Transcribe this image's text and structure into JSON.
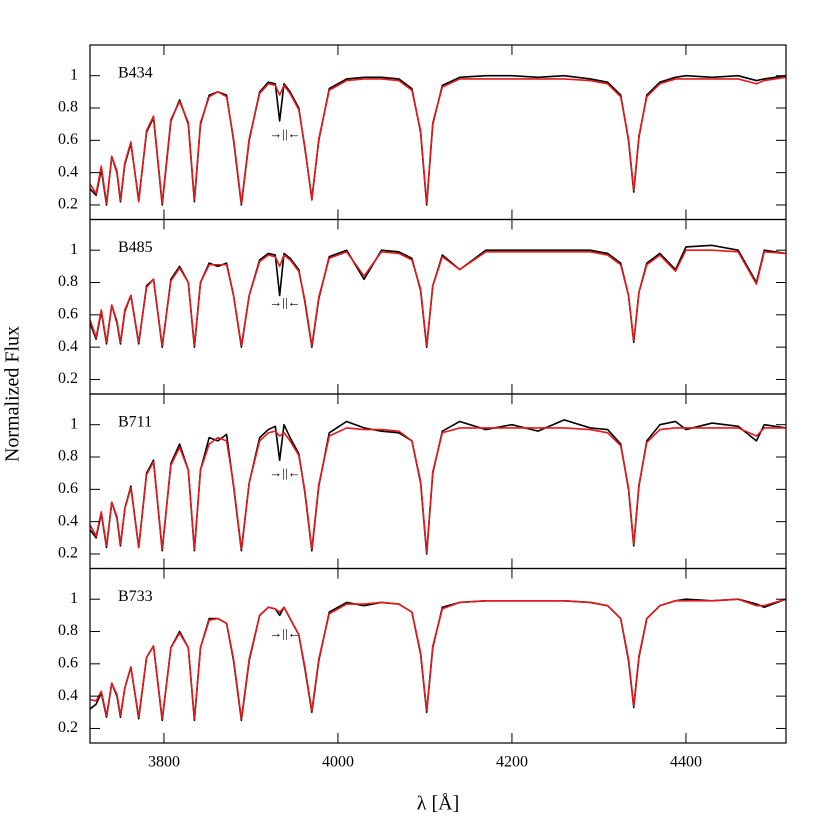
{
  "chart_data": [
    {
      "type": "line",
      "title": "B434",
      "annotation": "→||←",
      "ylabel": "Normalized Flux",
      "xlim": [
        3715,
        4515
      ],
      "xticks": [
        3800,
        4000,
        4200,
        4400
      ],
      "ylim": [
        0.11,
        1.19
      ],
      "yticks": [
        0.2,
        0.4,
        0.6,
        0.8,
        1
      ],
      "x": [
        3715,
        3722,
        3728,
        3734,
        3740,
        3746,
        3750,
        3755,
        3762,
        3771,
        3780,
        3788,
        3798,
        3808,
        3818,
        3828,
        3835,
        3842,
        3852,
        3862,
        3872,
        3880,
        3889,
        3898,
        3910,
        3920,
        3928,
        3933,
        3938,
        3945,
        3955,
        3962,
        3970,
        3978,
        3990,
        4010,
        4030,
        4050,
        4070,
        4085,
        4095,
        4102,
        4109,
        4120,
        4140,
        4170,
        4200,
        4230,
        4260,
        4290,
        4310,
        4325,
        4334,
        4340,
        4346,
        4355,
        4370,
        4388,
        4400,
        4430,
        4460,
        4481,
        4490,
        4515
      ],
      "series": [
        {
          "color": "#000000",
          "values": [
            0.3,
            0.26,
            0.42,
            0.2,
            0.5,
            0.4,
            0.22,
            0.45,
            0.58,
            0.23,
            0.65,
            0.74,
            0.2,
            0.72,
            0.85,
            0.7,
            0.22,
            0.7,
            0.88,
            0.9,
            0.88,
            0.6,
            0.2,
            0.6,
            0.9,
            0.96,
            0.95,
            0.72,
            0.95,
            0.9,
            0.8,
            0.55,
            0.24,
            0.6,
            0.92,
            0.98,
            0.99,
            0.99,
            0.98,
            0.92,
            0.65,
            0.2,
            0.7,
            0.94,
            0.99,
            1.0,
            1.0,
            0.99,
            1.0,
            0.98,
            0.96,
            0.88,
            0.6,
            0.28,
            0.62,
            0.88,
            0.96,
            0.99,
            1.0,
            0.99,
            1.0,
            0.97,
            0.98,
            1.0
          ]
        },
        {
          "color": "#e31a1c",
          "values": [
            0.33,
            0.27,
            0.44,
            0.21,
            0.5,
            0.41,
            0.23,
            0.46,
            0.59,
            0.22,
            0.66,
            0.75,
            0.21,
            0.73,
            0.84,
            0.71,
            0.23,
            0.71,
            0.87,
            0.9,
            0.87,
            0.61,
            0.21,
            0.61,
            0.89,
            0.95,
            0.94,
            0.88,
            0.94,
            0.89,
            0.79,
            0.56,
            0.23,
            0.61,
            0.91,
            0.97,
            0.98,
            0.98,
            0.97,
            0.91,
            0.66,
            0.21,
            0.71,
            0.93,
            0.98,
            0.98,
            0.98,
            0.98,
            0.98,
            0.97,
            0.95,
            0.87,
            0.61,
            0.29,
            0.63,
            0.87,
            0.95,
            0.98,
            0.98,
            0.98,
            0.98,
            0.95,
            0.97,
            0.99
          ]
        }
      ]
    },
    {
      "type": "line",
      "title": "B485",
      "annotation": "→||←",
      "xlim": [
        3715,
        4515
      ],
      "xticks": [
        3800,
        4000,
        4200,
        4400
      ],
      "ylim": [
        0.11,
        1.19
      ],
      "yticks": [
        0.2,
        0.4,
        0.6,
        0.8,
        1
      ],
      "x": [
        3715,
        3722,
        3728,
        3734,
        3740,
        3746,
        3750,
        3755,
        3762,
        3771,
        3780,
        3788,
        3798,
        3808,
        3818,
        3828,
        3835,
        3842,
        3852,
        3862,
        3872,
        3880,
        3889,
        3898,
        3910,
        3920,
        3928,
        3933,
        3938,
        3945,
        3955,
        3962,
        3970,
        3978,
        3990,
        4010,
        4030,
        4050,
        4070,
        4085,
        4095,
        4102,
        4109,
        4120,
        4140,
        4170,
        4200,
        4230,
        4260,
        4290,
        4310,
        4325,
        4334,
        4340,
        4346,
        4355,
        4370,
        4388,
        4400,
        4430,
        4460,
        4481,
        4490,
        4515
      ],
      "series": [
        {
          "color": "#000000",
          "values": [
            0.55,
            0.45,
            0.62,
            0.42,
            0.66,
            0.55,
            0.42,
            0.62,
            0.72,
            0.42,
            0.78,
            0.82,
            0.4,
            0.82,
            0.9,
            0.8,
            0.4,
            0.8,
            0.92,
            0.9,
            0.92,
            0.72,
            0.4,
            0.72,
            0.94,
            0.98,
            0.97,
            0.72,
            0.98,
            0.95,
            0.88,
            0.68,
            0.4,
            0.7,
            0.96,
            1.0,
            0.82,
            1.0,
            0.99,
            0.95,
            0.75,
            0.4,
            0.78,
            0.97,
            0.88,
            1.0,
            1.0,
            1.0,
            1.0,
            1.0,
            0.98,
            0.92,
            0.72,
            0.43,
            0.74,
            0.92,
            0.98,
            0.88,
            1.02,
            1.03,
            1.0,
            0.8,
            1.0,
            0.98
          ]
        },
        {
          "color": "#e31a1c",
          "values": [
            0.57,
            0.46,
            0.63,
            0.43,
            0.66,
            0.56,
            0.43,
            0.63,
            0.72,
            0.43,
            0.77,
            0.82,
            0.41,
            0.81,
            0.89,
            0.8,
            0.41,
            0.8,
            0.91,
            0.91,
            0.91,
            0.72,
            0.41,
            0.72,
            0.93,
            0.97,
            0.96,
            0.9,
            0.97,
            0.94,
            0.87,
            0.69,
            0.41,
            0.71,
            0.95,
            0.99,
            0.84,
            0.99,
            0.98,
            0.94,
            0.76,
            0.41,
            0.78,
            0.96,
            0.88,
            0.99,
            0.99,
            0.99,
            0.99,
            0.99,
            0.97,
            0.91,
            0.72,
            0.44,
            0.74,
            0.91,
            0.97,
            0.87,
            1.0,
            1.0,
            0.99,
            0.79,
            0.99,
            0.98
          ]
        }
      ]
    },
    {
      "type": "line",
      "title": "B711",
      "annotation": "→||←",
      "xlim": [
        3715,
        4515
      ],
      "xticks": [
        3800,
        4000,
        4200,
        4400
      ],
      "ylim": [
        0.11,
        1.19
      ],
      "yticks": [
        0.2,
        0.4,
        0.6,
        0.8,
        1
      ],
      "x": [
        3715,
        3722,
        3728,
        3734,
        3740,
        3746,
        3750,
        3755,
        3762,
        3771,
        3780,
        3788,
        3798,
        3808,
        3818,
        3828,
        3835,
        3842,
        3852,
        3862,
        3872,
        3880,
        3889,
        3898,
        3910,
        3920,
        3928,
        3933,
        3938,
        3945,
        3955,
        3962,
        3970,
        3978,
        3990,
        4010,
        4030,
        4050,
        4070,
        4085,
        4095,
        4102,
        4109,
        4120,
        4140,
        4170,
        4200,
        4230,
        4260,
        4290,
        4310,
        4325,
        4334,
        4340,
        4346,
        4355,
        4370,
        4388,
        4400,
        4430,
        4460,
        4481,
        4490,
        4515
      ],
      "series": [
        {
          "color": "#000000",
          "values": [
            0.35,
            0.3,
            0.45,
            0.24,
            0.52,
            0.42,
            0.25,
            0.48,
            0.62,
            0.24,
            0.7,
            0.78,
            0.22,
            0.76,
            0.88,
            0.72,
            0.22,
            0.72,
            0.92,
            0.9,
            0.94,
            0.62,
            0.22,
            0.64,
            0.92,
            0.97,
            0.99,
            0.78,
            1.0,
            0.92,
            0.82,
            0.58,
            0.22,
            0.62,
            0.95,
            1.02,
            0.98,
            0.96,
            0.95,
            0.9,
            0.64,
            0.2,
            0.7,
            0.96,
            1.02,
            0.97,
            1.0,
            0.96,
            1.03,
            0.98,
            0.97,
            0.88,
            0.6,
            0.25,
            0.62,
            0.9,
            1.0,
            1.02,
            0.97,
            1.01,
            0.99,
            0.9,
            1.0,
            0.98
          ]
        },
        {
          "color": "#e31a1c",
          "values": [
            0.38,
            0.31,
            0.46,
            0.25,
            0.52,
            0.43,
            0.26,
            0.48,
            0.61,
            0.24,
            0.69,
            0.77,
            0.23,
            0.75,
            0.86,
            0.72,
            0.23,
            0.72,
            0.88,
            0.92,
            0.9,
            0.63,
            0.23,
            0.64,
            0.9,
            0.95,
            0.96,
            0.93,
            0.95,
            0.9,
            0.81,
            0.59,
            0.23,
            0.63,
            0.93,
            0.98,
            0.97,
            0.97,
            0.96,
            0.9,
            0.65,
            0.21,
            0.71,
            0.95,
            0.98,
            0.98,
            0.98,
            0.98,
            0.98,
            0.97,
            0.95,
            0.87,
            0.61,
            0.26,
            0.63,
            0.89,
            0.97,
            0.98,
            0.98,
            0.98,
            0.98,
            0.93,
            0.98,
            0.98
          ]
        }
      ]
    },
    {
      "type": "line",
      "title": "B733",
      "annotation": "→||←",
      "xlabel": "λ [Å]",
      "xlim": [
        3715,
        4515
      ],
      "xticks": [
        3800,
        4000,
        4200,
        4400
      ],
      "ylim": [
        0.11,
        1.19
      ],
      "yticks": [
        0.2,
        0.4,
        0.6,
        0.8,
        1
      ],
      "x": [
        3715,
        3722,
        3728,
        3734,
        3740,
        3746,
        3750,
        3755,
        3762,
        3771,
        3780,
        3788,
        3798,
        3808,
        3818,
        3828,
        3835,
        3842,
        3852,
        3862,
        3872,
        3880,
        3889,
        3898,
        3910,
        3920,
        3928,
        3933,
        3938,
        3945,
        3955,
        3962,
        3970,
        3978,
        3990,
        4010,
        4030,
        4050,
        4070,
        4085,
        4095,
        4102,
        4109,
        4120,
        4140,
        4170,
        4200,
        4230,
        4260,
        4290,
        4310,
        4325,
        4334,
        4340,
        4346,
        4355,
        4370,
        4388,
        4400,
        4430,
        4460,
        4481,
        4490,
        4515
      ],
      "series": [
        {
          "color": "#000000",
          "values": [
            0.32,
            0.35,
            0.42,
            0.27,
            0.48,
            0.4,
            0.27,
            0.45,
            0.58,
            0.26,
            0.64,
            0.71,
            0.25,
            0.7,
            0.8,
            0.7,
            0.25,
            0.7,
            0.88,
            0.88,
            0.85,
            0.62,
            0.25,
            0.62,
            0.9,
            0.95,
            0.94,
            0.9,
            0.95,
            0.88,
            0.78,
            0.57,
            0.3,
            0.62,
            0.92,
            0.98,
            0.96,
            0.98,
            0.97,
            0.92,
            0.66,
            0.3,
            0.7,
            0.95,
            0.98,
            0.99,
            0.99,
            0.99,
            0.99,
            0.98,
            0.96,
            0.88,
            0.62,
            0.33,
            0.64,
            0.88,
            0.96,
            0.99,
            1.0,
            0.99,
            1.0,
            0.97,
            0.95,
            1.0
          ]
        },
        {
          "color": "#e31a1c",
          "values": [
            0.38,
            0.37,
            0.43,
            0.28,
            0.48,
            0.41,
            0.28,
            0.45,
            0.58,
            0.27,
            0.64,
            0.71,
            0.26,
            0.7,
            0.79,
            0.7,
            0.26,
            0.7,
            0.87,
            0.88,
            0.85,
            0.63,
            0.26,
            0.63,
            0.9,
            0.95,
            0.94,
            0.92,
            0.95,
            0.88,
            0.78,
            0.58,
            0.31,
            0.63,
            0.91,
            0.97,
            0.97,
            0.98,
            0.97,
            0.92,
            0.67,
            0.31,
            0.71,
            0.94,
            0.98,
            0.99,
            0.99,
            0.99,
            0.99,
            0.98,
            0.96,
            0.88,
            0.63,
            0.34,
            0.65,
            0.88,
            0.96,
            0.99,
            0.99,
            0.99,
            1.0,
            0.96,
            0.96,
            1.0
          ]
        }
      ]
    }
  ]
}
